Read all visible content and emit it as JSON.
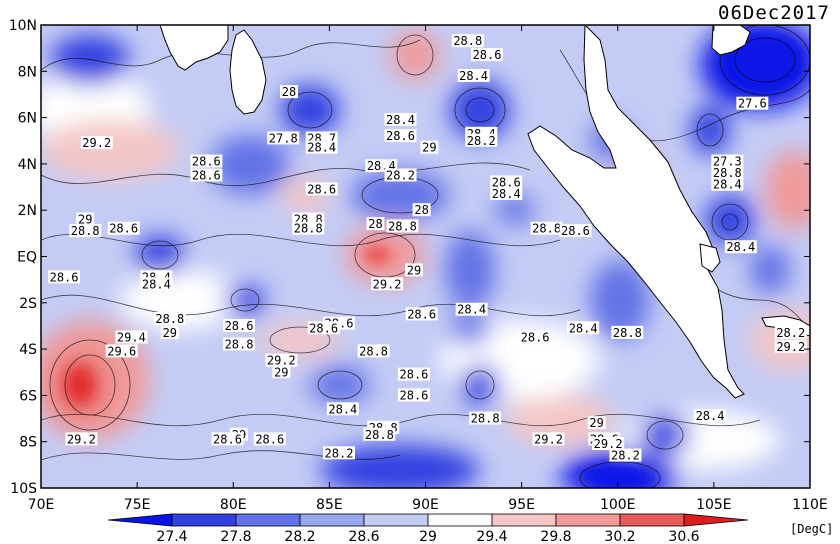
{
  "header": {
    "date": "06Dec2017"
  },
  "map": {
    "lat_labels": [
      "10N",
      "8N",
      "6N",
      "4N",
      "2N",
      "EQ",
      "2S",
      "4S",
      "6S",
      "8S",
      "10S"
    ],
    "lon_labels": [
      "70E",
      "75E",
      "80E",
      "85E",
      "90E",
      "95E",
      "100E",
      "105E",
      "110E"
    ],
    "lon_range": [
      70,
      110
    ],
    "lat_range": [
      -10,
      10
    ]
  },
  "colorbar": {
    "ticks": [
      "27.4",
      "27.8",
      "28.2",
      "28.6",
      "29",
      "29.4",
      "29.8",
      "30.2",
      "30.6"
    ],
    "colors": [
      "#0a14e6",
      "#3241e0",
      "#6372e6",
      "#98a6ee",
      "#c4ccf5",
      "#ffffff",
      "#f4c6c6",
      "#f09a9a",
      "#e85a5a",
      "#e01c1c"
    ],
    "unit": "[DegC]"
  },
  "contour_labels": [
    {
      "text": "28.8",
      "lon": 92.2,
      "lat": 9.3
    },
    {
      "text": "28.6",
      "lon": 93.2,
      "lat": 8.7
    },
    {
      "text": "28.4",
      "lon": 92.5,
      "lat": 7.8
    },
    {
      "text": "28",
      "lon": 82.9,
      "lat": 7.1
    },
    {
      "text": "27.6",
      "lon": 107.0,
      "lat": 6.6
    },
    {
      "text": "29.2",
      "lon": 72.9,
      "lat": 4.9
    },
    {
      "text": "27.8",
      "lon": 82.6,
      "lat": 5.1
    },
    {
      "text": "28.7",
      "lon": 84.6,
      "lat": 5.1
    },
    {
      "text": "28.4",
      "lon": 84.6,
      "lat": 4.7
    },
    {
      "text": "28.4",
      "lon": 88.7,
      "lat": 5.9
    },
    {
      "text": "28.6",
      "lon": 88.7,
      "lat": 5.2
    },
    {
      "text": "29",
      "lon": 90.2,
      "lat": 4.7
    },
    {
      "text": "28.4",
      "lon": 92.9,
      "lat": 5.3
    },
    {
      "text": "28.2",
      "lon": 92.9,
      "lat": 5.0
    },
    {
      "text": "28.6",
      "lon": 78.6,
      "lat": 4.1
    },
    {
      "text": "28.6",
      "lon": 78.6,
      "lat": 3.5
    },
    {
      "text": "28.4",
      "lon": 87.7,
      "lat": 3.9
    },
    {
      "text": "28.2",
      "lon": 88.7,
      "lat": 3.5
    },
    {
      "text": "27.3",
      "lon": 105.7,
      "lat": 4.1
    },
    {
      "text": "28.8",
      "lon": 105.7,
      "lat": 3.6
    },
    {
      "text": "28.4",
      "lon": 105.7,
      "lat": 3.1
    },
    {
      "text": "28.6",
      "lon": 84.6,
      "lat": 2.9
    },
    {
      "text": "28.6",
      "lon": 94.2,
      "lat": 3.2
    },
    {
      "text": "28.4",
      "lon": 94.2,
      "lat": 2.7
    },
    {
      "text": "29",
      "lon": 72.3,
      "lat": 1.6
    },
    {
      "text": "28.8",
      "lon": 72.3,
      "lat": 1.1
    },
    {
      "text": "28.6",
      "lon": 74.3,
      "lat": 1.2
    },
    {
      "text": "28.8",
      "lon": 83.9,
      "lat": 1.6
    },
    {
      "text": "28.8",
      "lon": 83.9,
      "lat": 1.2
    },
    {
      "text": "28",
      "lon": 87.4,
      "lat": 1.4
    },
    {
      "text": "28.8",
      "lon": 88.8,
      "lat": 1.3
    },
    {
      "text": "28",
      "lon": 89.8,
      "lat": 2.0
    },
    {
      "text": "28.8",
      "lon": 96.3,
      "lat": 1.2
    },
    {
      "text": "28.6",
      "lon": 97.8,
      "lat": 1.1
    },
    {
      "text": "28.4",
      "lon": 106.4,
      "lat": 0.4
    },
    {
      "text": "28.6",
      "lon": 71.2,
      "lat": -0.9
    },
    {
      "text": "28.4",
      "lon": 76.0,
      "lat": -0.9
    },
    {
      "text": "28.4",
      "lon": 76.0,
      "lat": -1.2
    },
    {
      "text": "29",
      "lon": 89.4,
      "lat": -0.6
    },
    {
      "text": "29.2",
      "lon": 88.0,
      "lat": -1.2
    },
    {
      "text": "29.4",
      "lon": 74.7,
      "lat": -3.5
    },
    {
      "text": "29",
      "lon": 76.7,
      "lat": -3.3
    },
    {
      "text": "29.6",
      "lon": 74.2,
      "lat": -4.1
    },
    {
      "text": "28.8",
      "lon": 76.7,
      "lat": -2.7
    },
    {
      "text": "28.6",
      "lon": 80.3,
      "lat": -3.0
    },
    {
      "text": "28.8",
      "lon": 80.3,
      "lat": -3.8
    },
    {
      "text": "28.6",
      "lon": 85.5,
      "lat": -2.9
    },
    {
      "text": "28.6",
      "lon": 84.7,
      "lat": -3.1
    },
    {
      "text": "28.6",
      "lon": 89.8,
      "lat": -2.5
    },
    {
      "text": "28.4",
      "lon": 92.4,
      "lat": -2.3
    },
    {
      "text": "28.4",
      "lon": 98.2,
      "lat": -3.1
    },
    {
      "text": "28.6",
      "lon": 95.7,
      "lat": -3.5
    },
    {
      "text": "28.8",
      "lon": 100.5,
      "lat": -3.3
    },
    {
      "text": "28.2",
      "lon": 109.0,
      "lat": -3.3
    },
    {
      "text": "29.2",
      "lon": 109.0,
      "lat": -3.9
    },
    {
      "text": "28.8",
      "lon": 87.3,
      "lat": -4.1
    },
    {
      "text": "29.2",
      "lon": 82.5,
      "lat": -4.5
    },
    {
      "text": "29",
      "lon": 82.5,
      "lat": -5.0
    },
    {
      "text": "28.6",
      "lon": 89.4,
      "lat": -5.1
    },
    {
      "text": "28.6",
      "lon": 89.4,
      "lat": -6.0
    },
    {
      "text": "28.4",
      "lon": 85.7,
      "lat": -6.6
    },
    {
      "text": "28.4",
      "lon": 104.8,
      "lat": -6.9
    },
    {
      "text": "29.2",
      "lon": 72.1,
      "lat": -7.9
    },
    {
      "text": "29",
      "lon": 80.3,
      "lat": -7.7
    },
    {
      "text": "28.6",
      "lon": 79.7,
      "lat": -7.9
    },
    {
      "text": "28.6",
      "lon": 81.9,
      "lat": -7.9
    },
    {
      "text": "28.8",
      "lon": 93.1,
      "lat": -7.0
    },
    {
      "text": "28.8",
      "lon": 87.8,
      "lat": -7.4
    },
    {
      "text": "28.8",
      "lon": 87.6,
      "lat": -7.7
    },
    {
      "text": "29",
      "lon": 98.9,
      "lat": -7.2
    },
    {
      "text": "29.2",
      "lon": 96.4,
      "lat": -7.9
    },
    {
      "text": "28.6",
      "lon": 99.3,
      "lat": -7.9
    },
    {
      "text": "29.2",
      "lon": 99.5,
      "lat": -8.1
    },
    {
      "text": "28.2",
      "lon": 85.5,
      "lat": -8.5
    },
    {
      "text": "28.2",
      "lon": 100.4,
      "lat": -8.6
    }
  ]
}
